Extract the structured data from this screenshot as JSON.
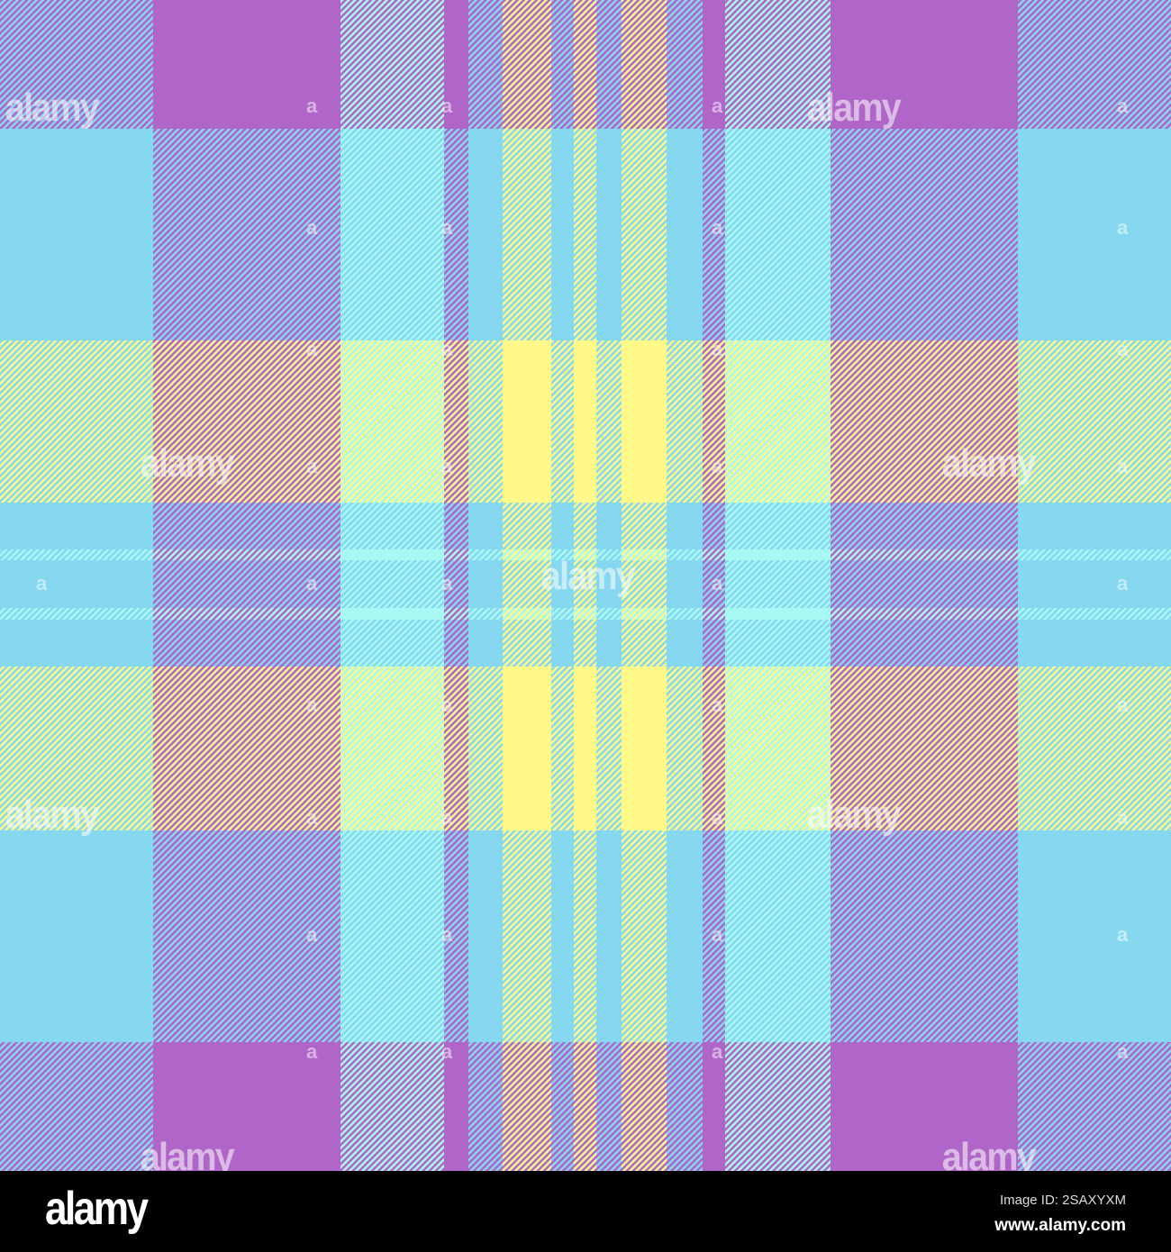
{
  "colors": {
    "P": "#b066c8",
    "B": "#85d8ef",
    "C": "#a8f8f4",
    "Y": "#fff98a"
  },
  "warp": [
    "B",
    "P",
    "C",
    "P",
    "B",
    "Y",
    "B",
    "Y",
    "B",
    "Y",
    "B",
    "P",
    "C",
    "P",
    "B"
  ],
  "weft": [
    "P",
    "B",
    "Y",
    "B",
    "C",
    "B",
    "C",
    "B",
    "Y",
    "B",
    "P"
  ],
  "watermark": {
    "text": "alamy",
    "mark": "a"
  },
  "footer": {
    "logo": "alamy",
    "image_id": "Image ID: 2SAXYXM",
    "website": "www.alamy.com"
  }
}
